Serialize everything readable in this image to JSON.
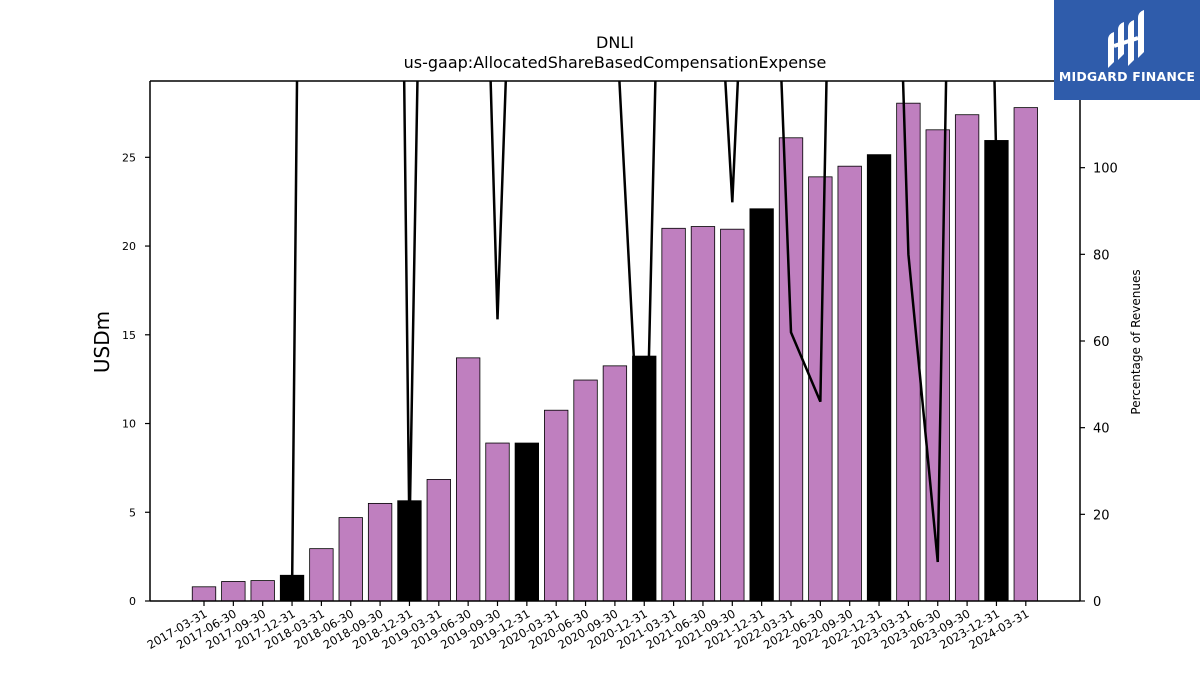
{
  "logo": {
    "text": "MIDGARD FINANCE",
    "icon": "midgard-logo-icon",
    "background": "#2f5cab"
  },
  "chart_data": {
    "type": "bar",
    "title": "DNLI",
    "subtitle": "us-gaap:AllocatedShareBasedCompensationExpense",
    "ylabel": "USDm",
    "y2label": "Percentage of Revenues",
    "ylim": [
      0,
      29.3
    ],
    "y2lim": [
      0,
      120
    ],
    "yticks": [
      0,
      5,
      10,
      15,
      20,
      25
    ],
    "y2ticks": [
      0,
      20,
      40,
      60,
      80,
      100
    ],
    "grid": false,
    "colors": {
      "quarterly": "#bf7fbf",
      "annual": "#000000",
      "line": "#000000"
    },
    "categories": [
      "2017-03-31",
      "2017-06-30",
      "2017-09-30",
      "2017-12-31",
      "2018-03-31",
      "2018-06-30",
      "2018-09-30",
      "2018-12-31",
      "2019-03-31",
      "2019-06-30",
      "2019-09-30",
      "2019-12-31",
      "2020-03-31",
      "2020-06-30",
      "2020-09-30",
      "2020-12-31",
      "2021-03-31",
      "2021-06-30",
      "2021-09-30",
      "2021-12-31",
      "2022-03-31",
      "2022-06-30",
      "2022-09-30",
      "2022-12-31",
      "2023-03-31",
      "2023-06-30",
      "2023-09-30",
      "2023-12-31",
      "2024-03-31"
    ],
    "values": [
      0.8,
      1.1,
      1.15,
      1.45,
      2.95,
      4.7,
      5.5,
      5.65,
      6.85,
      13.7,
      8.9,
      8.9,
      10.75,
      12.45,
      13.25,
      13.8,
      21.0,
      21.1,
      20.95,
      22.1,
      26.1,
      23.9,
      24.5,
      25.15,
      28.05,
      26.55,
      27.4,
      25.95,
      27.8
    ],
    "annual_flags": [
      false,
      false,
      false,
      true,
      false,
      false,
      false,
      true,
      false,
      false,
      false,
      true,
      false,
      false,
      false,
      true,
      false,
      false,
      false,
      true,
      false,
      false,
      false,
      true,
      false,
      false,
      false,
      true,
      false
    ],
    "pct_revenue": [
      null,
      null,
      null,
      2.0,
      700,
      550,
      600,
      15,
      400,
      300,
      65,
      260,
      300,
      250,
      140,
      10,
      300,
      210,
      92,
      240,
      62,
      46,
      400,
      300,
      80,
      9,
      400,
      100,
      null
    ]
  }
}
